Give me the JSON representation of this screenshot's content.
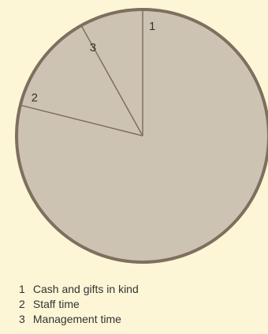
{
  "chart_data": {
    "type": "pie",
    "slices": [
      {
        "key": "1",
        "label": "Cash and gifts in kind",
        "value": 78.9
      },
      {
        "key": "2",
        "label": "Staff time",
        "value": 13.0
      },
      {
        "key": "3",
        "label": "Management time",
        "value": 8.1
      }
    ],
    "colors": {
      "fill": "#cdc3b3",
      "edge": "#7e6f5e",
      "text": "#333333"
    }
  }
}
